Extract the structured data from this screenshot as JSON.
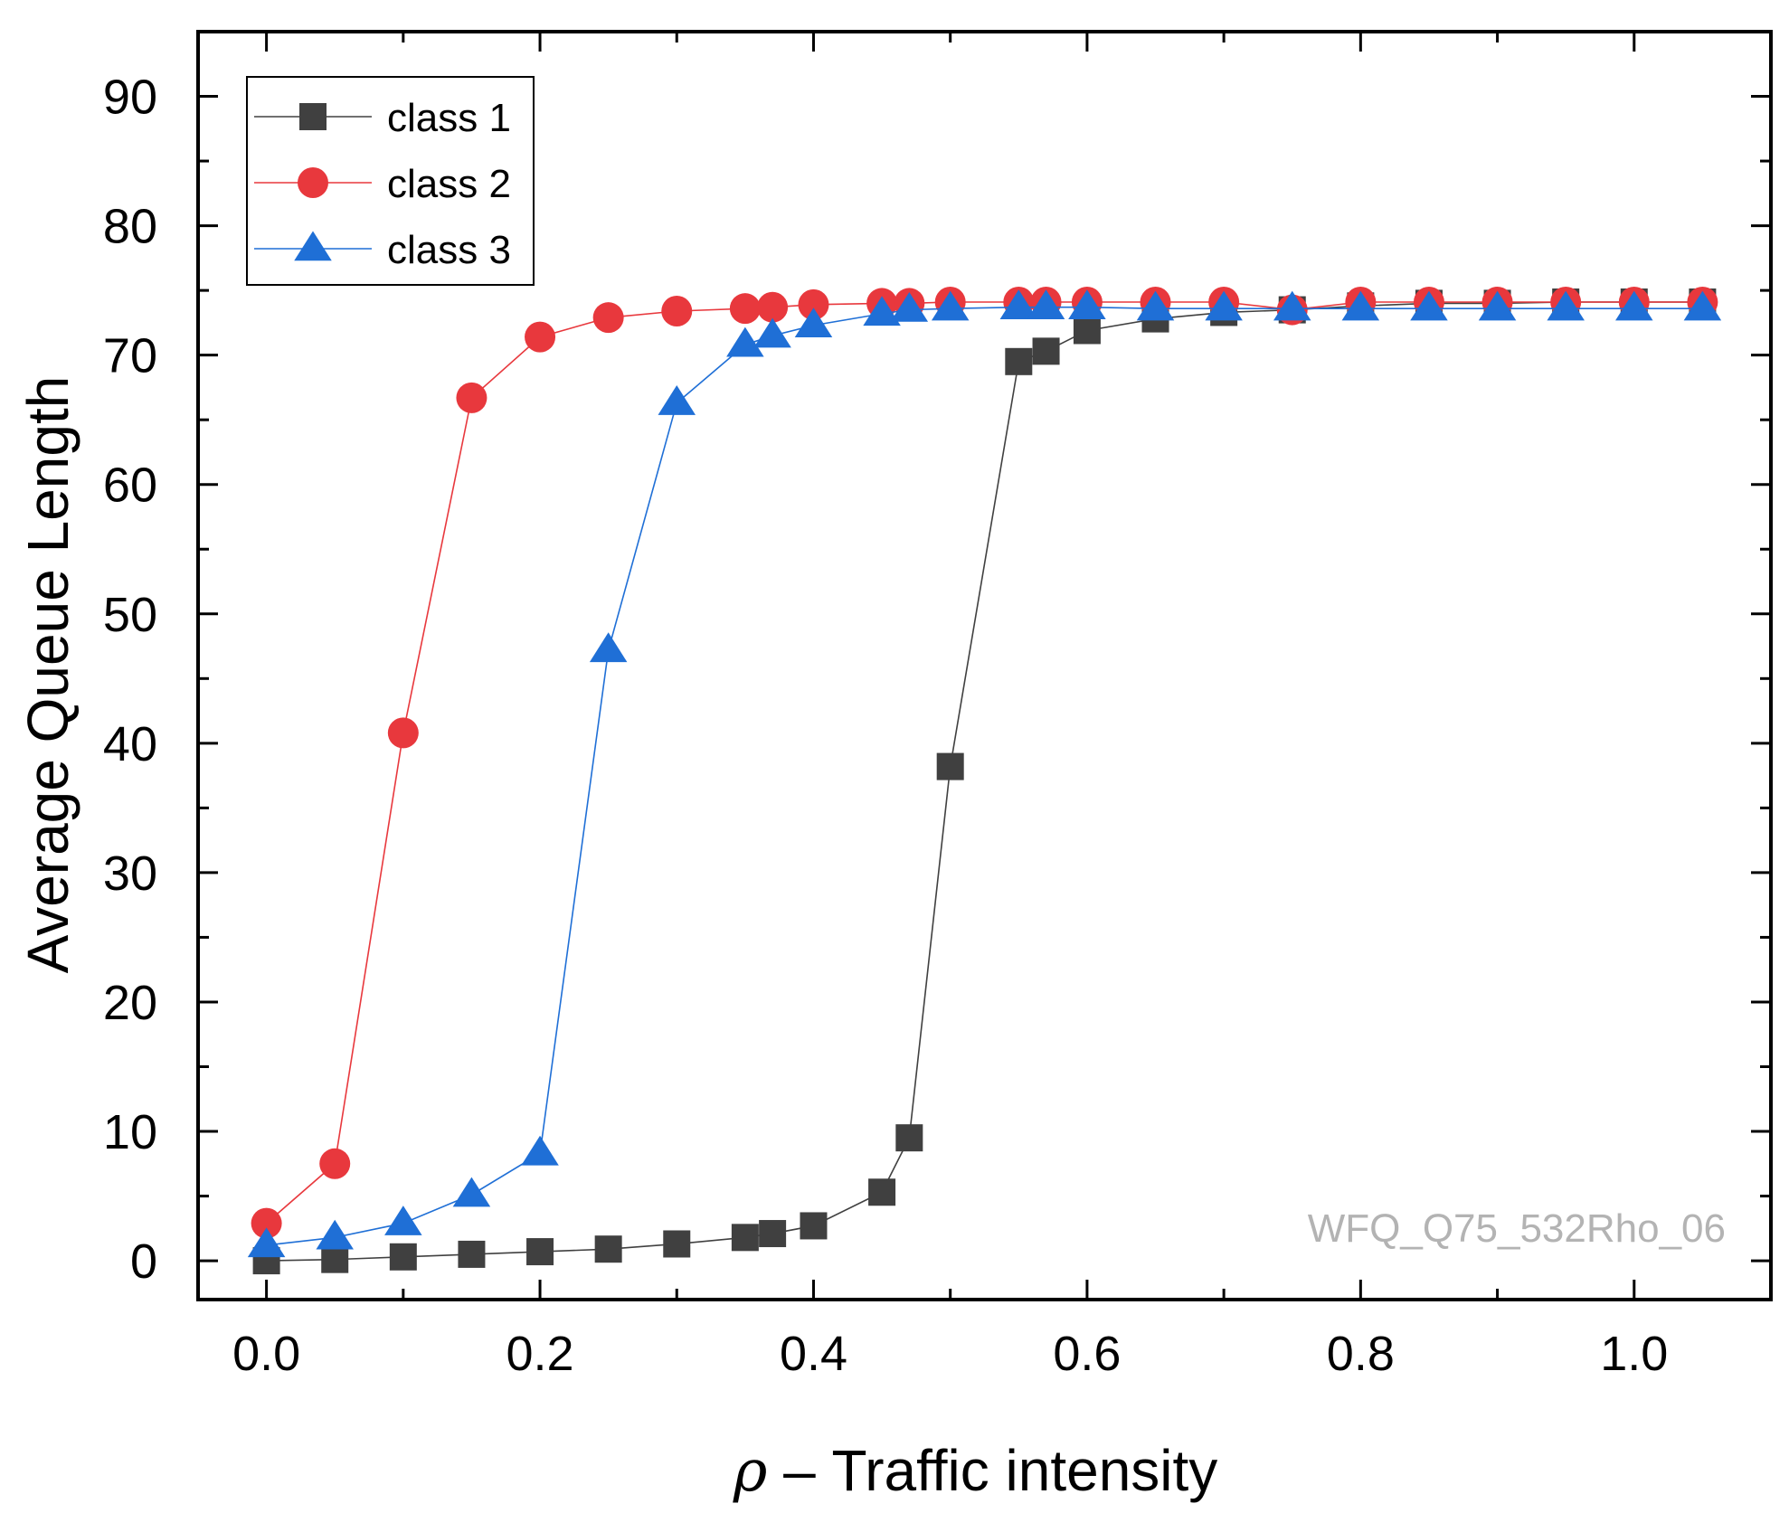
{
  "chart_data": {
    "type": "line",
    "title": "",
    "xlabel": "ρ – Traffic intensity",
    "xlabel_symbol": "ρ",
    "xlabel_text": " – Traffic intensity",
    "ylabel": "Average Queue Length",
    "xlim": [
      -0.05,
      1.1
    ],
    "ylim": [
      -3,
      95
    ],
    "xticks": [
      0.0,
      0.2,
      0.4,
      0.6,
      0.8,
      1.0
    ],
    "xtick_labels": [
      "0.0",
      "0.2",
      "0.4",
      "0.6",
      "0.8",
      "1.0"
    ],
    "yticks": [
      0,
      10,
      20,
      30,
      40,
      50,
      60,
      70,
      80,
      90
    ],
    "ytick_labels": [
      "0",
      "10",
      "20",
      "30",
      "40",
      "50",
      "60",
      "70",
      "80",
      "90"
    ],
    "grid": false,
    "legend_position": "top-left",
    "annotation": "WFQ_Q75_532Rho_06",
    "series": [
      {
        "name": "class 1",
        "color": "#404040",
        "marker": "square",
        "x": [
          0.0,
          0.05,
          0.1,
          0.15,
          0.2,
          0.25,
          0.3,
          0.35,
          0.37,
          0.4,
          0.45,
          0.47,
          0.5,
          0.55,
          0.57,
          0.6,
          0.65,
          0.7,
          0.75,
          0.8,
          0.85,
          0.9,
          0.95,
          1.0,
          1.05
        ],
        "values": [
          0.0,
          0.1,
          0.3,
          0.5,
          0.7,
          0.9,
          1.3,
          1.8,
          2.1,
          2.7,
          5.3,
          9.5,
          38.2,
          69.5,
          70.3,
          71.9,
          72.8,
          73.3,
          73.5,
          73.8,
          74.0,
          74.0,
          74.1,
          74.1,
          74.1
        ]
      },
      {
        "name": "class 2",
        "color": "#e8383d",
        "marker": "circle",
        "x": [
          0.0,
          0.05,
          0.1,
          0.15,
          0.2,
          0.25,
          0.3,
          0.35,
          0.37,
          0.4,
          0.45,
          0.47,
          0.5,
          0.55,
          0.57,
          0.6,
          0.65,
          0.7,
          0.75,
          0.8,
          0.85,
          0.9,
          0.95,
          1.0,
          1.05
        ],
        "values": [
          2.9,
          7.5,
          40.8,
          66.7,
          71.4,
          72.9,
          73.4,
          73.6,
          73.7,
          73.9,
          74.0,
          74.0,
          74.1,
          74.1,
          74.1,
          74.1,
          74.1,
          74.1,
          73.5,
          74.1,
          74.1,
          74.1,
          74.1,
          74.1,
          74.1
        ]
      },
      {
        "name": "class 3",
        "color": "#1f6fd6",
        "marker": "triangle",
        "x": [
          0.0,
          0.05,
          0.1,
          0.15,
          0.2,
          0.25,
          0.3,
          0.35,
          0.37,
          0.4,
          0.45,
          0.47,
          0.5,
          0.55,
          0.57,
          0.6,
          0.65,
          0.7,
          0.75,
          0.8,
          0.85,
          0.9,
          0.95,
          1.0,
          1.05
        ],
        "values": [
          1.2,
          1.8,
          2.9,
          5.1,
          8.3,
          47.2,
          66.3,
          70.8,
          71.5,
          72.3,
          73.2,
          73.5,
          73.6,
          73.7,
          73.7,
          73.7,
          73.6,
          73.6,
          73.6,
          73.6,
          73.6,
          73.6,
          73.6,
          73.6,
          73.6
        ]
      }
    ]
  }
}
